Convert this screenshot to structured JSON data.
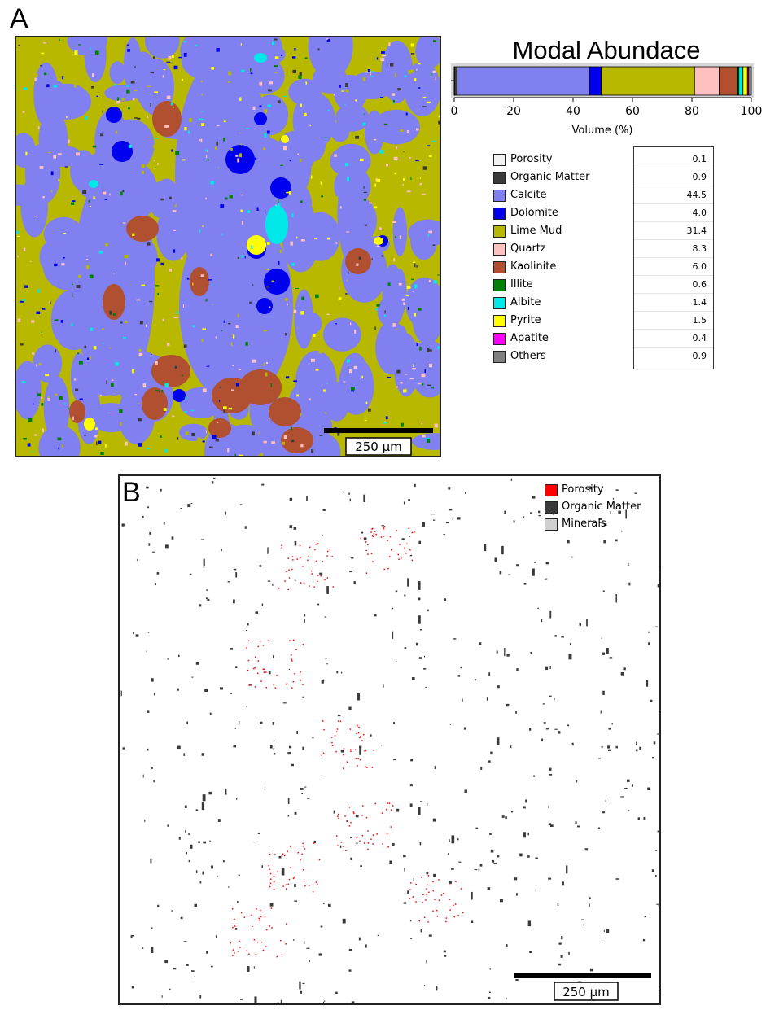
{
  "panel_a": {
    "letter": "A"
  },
  "panel_b": {
    "letter": "B"
  },
  "chart_data": [
    {
      "type": "bar",
      "orientation": "horizontal",
      "stacked": true,
      "title": "Modal Abundace",
      "xlabel": "Volume (%)",
      "xlim": [
        0,
        100
      ],
      "xticks": [
        "0",
        "20",
        "40",
        "60",
        "80",
        "100"
      ],
      "categories": [
        "Porosity",
        "Organic Matter",
        "Calcite",
        "Dolomite",
        "Lime Mud",
        "Quartz",
        "Kaolinite",
        "Illite",
        "Albite",
        "Pyrite",
        "Apatite",
        "Others"
      ],
      "values": [
        0.1,
        0.9,
        44.5,
        4.0,
        31.4,
        8.3,
        6.0,
        0.6,
        1.4,
        1.5,
        0.4,
        0.9
      ],
      "value_labels": [
        "0.1",
        "0.9",
        "44.5",
        "4.0",
        "31.4",
        "8.3",
        "6.0",
        "0.6",
        "1.4",
        "1.5",
        "0.4",
        "0.9"
      ],
      "colors": [
        "#f2f2f2",
        "#3a3a3a",
        "#8080f0",
        "#0000ee",
        "#b8b800",
        "#ffc0c0",
        "#b05030",
        "#008000",
        "#00e8e8",
        "#ffff00",
        "#ff00ff",
        "#808080"
      ]
    }
  ],
  "map_a": {
    "scale_label": "250 µm"
  },
  "map_b": {
    "scale_label": "250 µm",
    "legend": [
      {
        "label": "Porosity",
        "color": "#ff0000"
      },
      {
        "label": "Organic Matter",
        "color": "#3a3a3a"
      },
      {
        "label": "Minerals",
        "color": "#d0d0d0"
      }
    ]
  }
}
